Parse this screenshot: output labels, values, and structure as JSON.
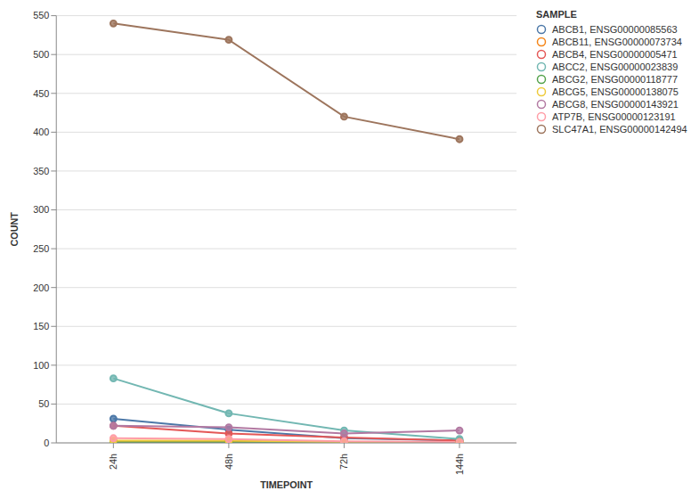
{
  "chart_data": {
    "type": "line",
    "x_label": "TIMEPOINT",
    "y_label": "COUNT",
    "legend_title": "SAMPLE",
    "categories": [
      "24h",
      "48h",
      "72h",
      "144h"
    ],
    "series": [
      {
        "name": "ABCB1, ENSG00000085563",
        "color": "#4c78a8",
        "values": [
          31,
          17,
          6,
          3
        ]
      },
      {
        "name": "ABCB11, ENSG00000073734",
        "color": "#f58518",
        "values": [
          2,
          2,
          1,
          1
        ]
      },
      {
        "name": "ABCB4, ENSG00000005471",
        "color": "#e45756",
        "values": [
          22,
          12,
          7,
          3
        ]
      },
      {
        "name": "ABCC2, ENSG00000023839",
        "color": "#72b7b2",
        "values": [
          83,
          38,
          16,
          5
        ]
      },
      {
        "name": "ABCG2, ENSG00000118777",
        "color": "#54a24b",
        "values": [
          1,
          1,
          0,
          0
        ]
      },
      {
        "name": "ABCG5, ENSG00000138075",
        "color": "#eeca3b",
        "values": [
          3,
          3,
          1,
          1
        ]
      },
      {
        "name": "ABCG8, ENSG00000143921",
        "color": "#b279a2",
        "values": [
          22,
          20,
          12,
          16
        ]
      },
      {
        "name": "ATP7B, ENSG00000123191",
        "color": "#ff9da6",
        "values": [
          6,
          5,
          2,
          1
        ]
      },
      {
        "name": "SLC47A1, ENSG00000142494",
        "color": "#9d755d",
        "values": [
          540,
          519,
          420,
          391
        ]
      }
    ],
    "ylim": [
      0,
      550
    ],
    "yticks": [
      0,
      50,
      100,
      150,
      200,
      250,
      300,
      350,
      400,
      450,
      500,
      550
    ],
    "grid": true,
    "legend": "top right",
    "marker": "circle"
  }
}
